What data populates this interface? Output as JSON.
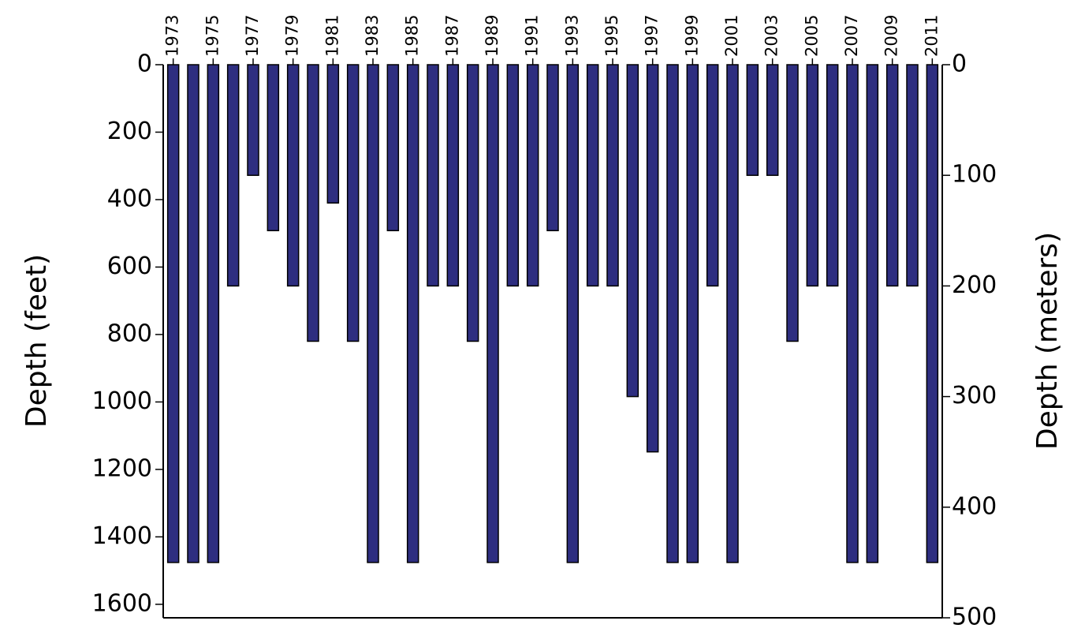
{
  "chart_data": {
    "type": "bar",
    "categories": [
      "1973",
      null,
      "1975",
      null,
      "1977",
      null,
      "1979",
      null,
      "1981",
      null,
      "1983",
      null,
      "1985",
      null,
      "1987",
      null,
      "1989",
      null,
      "1991",
      null,
      "1993",
      null,
      "1995",
      null,
      "1997",
      null,
      "1999",
      null,
      "2001",
      null,
      "2003",
      null,
      "2005",
      null,
      "2007",
      null,
      "2009",
      null,
      "2011"
    ],
    "series": [
      {
        "name": "Depth",
        "color": "#2e2e80",
        "axis": "y2",
        "values": [
          450,
          450,
          450,
          200,
          100,
          150,
          200,
          250,
          125,
          250,
          450,
          150,
          450,
          200,
          200,
          250,
          450,
          200,
          200,
          150,
          450,
          200,
          200,
          300,
          350,
          450,
          450,
          200,
          450,
          100,
          100,
          250,
          200,
          200,
          450,
          450,
          200,
          200,
          450
        ]
      }
    ],
    "y_label": "Depth  (feet)",
    "y2_label": "Depth  (meters)",
    "ylim": [
      0,
      1640
    ],
    "yticks": [
      0,
      200,
      400,
      600,
      800,
      1000,
      1200,
      1400,
      1600
    ],
    "y2lim": [
      0,
      500
    ],
    "y2ticks": [
      0,
      100,
      200,
      300,
      400,
      500
    ],
    "y_inverted": true
  }
}
